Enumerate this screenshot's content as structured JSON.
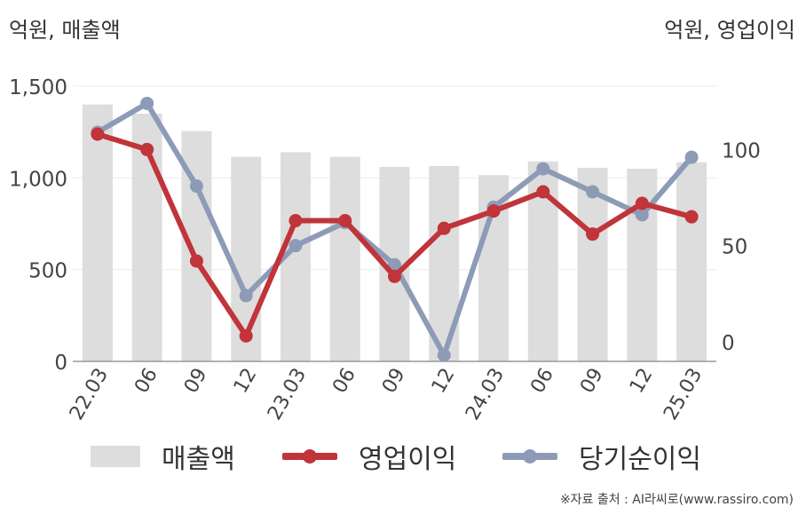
{
  "left_unit_label": "억원, 매출액",
  "right_unit_label": "억원, 영업이익",
  "source_note": "※자료 출처 : AI라씨로(www.rassiro.com)",
  "legend": [
    {
      "label": "매출액",
      "kind": "bar",
      "color": "#dddddd"
    },
    {
      "label": "영업이익",
      "kind": "line",
      "color": "#c0343a"
    },
    {
      "label": "당기순이익",
      "kind": "line",
      "color": "#8e9bb7"
    }
  ],
  "chart_data": {
    "type": "bar",
    "categories": [
      "22.03",
      "06",
      "09",
      "12",
      "23.03",
      "06",
      "09",
      "12",
      "24.03",
      "06",
      "09",
      "12",
      "25.03"
    ],
    "y_left": {
      "min": 0,
      "max": 1500,
      "ticks": [
        0,
        500,
        1000,
        1500
      ],
      "tick_labels": [
        "0",
        "500",
        "1,000",
        "1,500"
      ]
    },
    "y_right": {
      "min": -7,
      "max": 133,
      "ticks": [
        0,
        50,
        100
      ],
      "tick_labels": [
        "0",
        "50",
        "100"
      ]
    },
    "grid": true,
    "legend_position": "bottom",
    "series": [
      {
        "name": "매출액",
        "type": "bar",
        "axis": "left",
        "color": "#dddddd",
        "values": [
          1400,
          1350,
          1255,
          1115,
          1140,
          1115,
          1060,
          1065,
          1015,
          1090,
          1055,
          1050,
          1085
        ]
      },
      {
        "name": "영업이익",
        "type": "line",
        "axis": "right",
        "color": "#c0343a",
        "values": [
          108,
          100,
          42,
          3,
          63,
          63,
          34,
          59,
          68,
          78,
          56,
          72,
          65
        ]
      },
      {
        "name": "당기순이익",
        "type": "line",
        "axis": "right",
        "color": "#8e9bb7",
        "values": [
          109,
          124,
          81,
          24,
          50,
          62,
          40,
          -7,
          70,
          90,
          78,
          66,
          96
        ]
      }
    ]
  }
}
